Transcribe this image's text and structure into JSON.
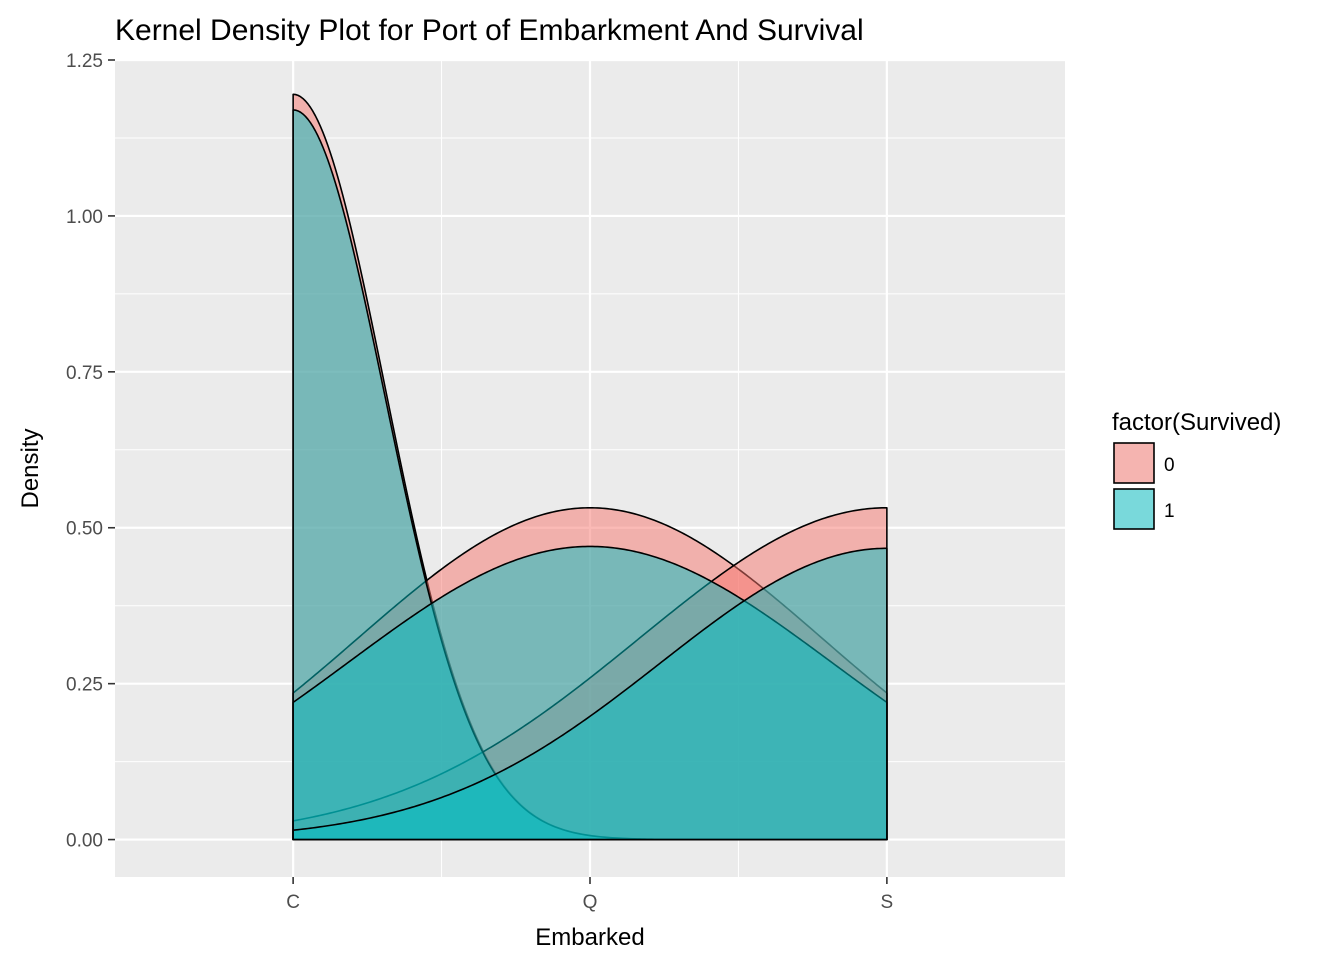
{
  "chart_data": {
    "type": "area",
    "title": "Kernel Density Plot for Port of Embarkment And Survival",
    "xlabel": "Embarked",
    "ylabel": "Density",
    "x_categories": [
      "C",
      "Q",
      "S"
    ],
    "x_range": [
      0.4,
      3.6
    ],
    "x_support": [
      1,
      3
    ],
    "y_ticks": [
      0.0,
      0.25,
      0.5,
      0.75,
      1.0,
      1.25
    ],
    "y_tick_labels": [
      "0.00",
      "0.25",
      "0.50",
      "0.75",
      "1.00",
      "1.25"
    ],
    "ylim": [
      -0.06,
      1.25
    ],
    "grid": true,
    "legend": {
      "title": "factor(Survived)",
      "position": "right",
      "entries": [
        {
          "label": "0",
          "color": "#F8766D"
        },
        {
          "label": "1",
          "color": "#00BFC4"
        }
      ]
    },
    "series": [
      {
        "group": "0",
        "color": "#F8766D",
        "components": [
          {
            "center": 1,
            "values": [
              1.195,
              0.0,
              0.0
            ]
          },
          {
            "center": 2,
            "values": [
              0.235,
              0.532,
              0.235
            ]
          },
          {
            "center": 3,
            "values": [
              0.03,
              0.235,
              0.532
            ]
          }
        ]
      },
      {
        "group": "1",
        "color": "#00BFC4",
        "components": [
          {
            "center": 1,
            "values": [
              1.17,
              0.0,
              0.0
            ]
          },
          {
            "center": 2,
            "values": [
              0.22,
              0.47,
              0.22
            ]
          },
          {
            "center": 3,
            "values": [
              0.015,
              0.22,
              0.467
            ]
          }
        ]
      }
    ]
  }
}
